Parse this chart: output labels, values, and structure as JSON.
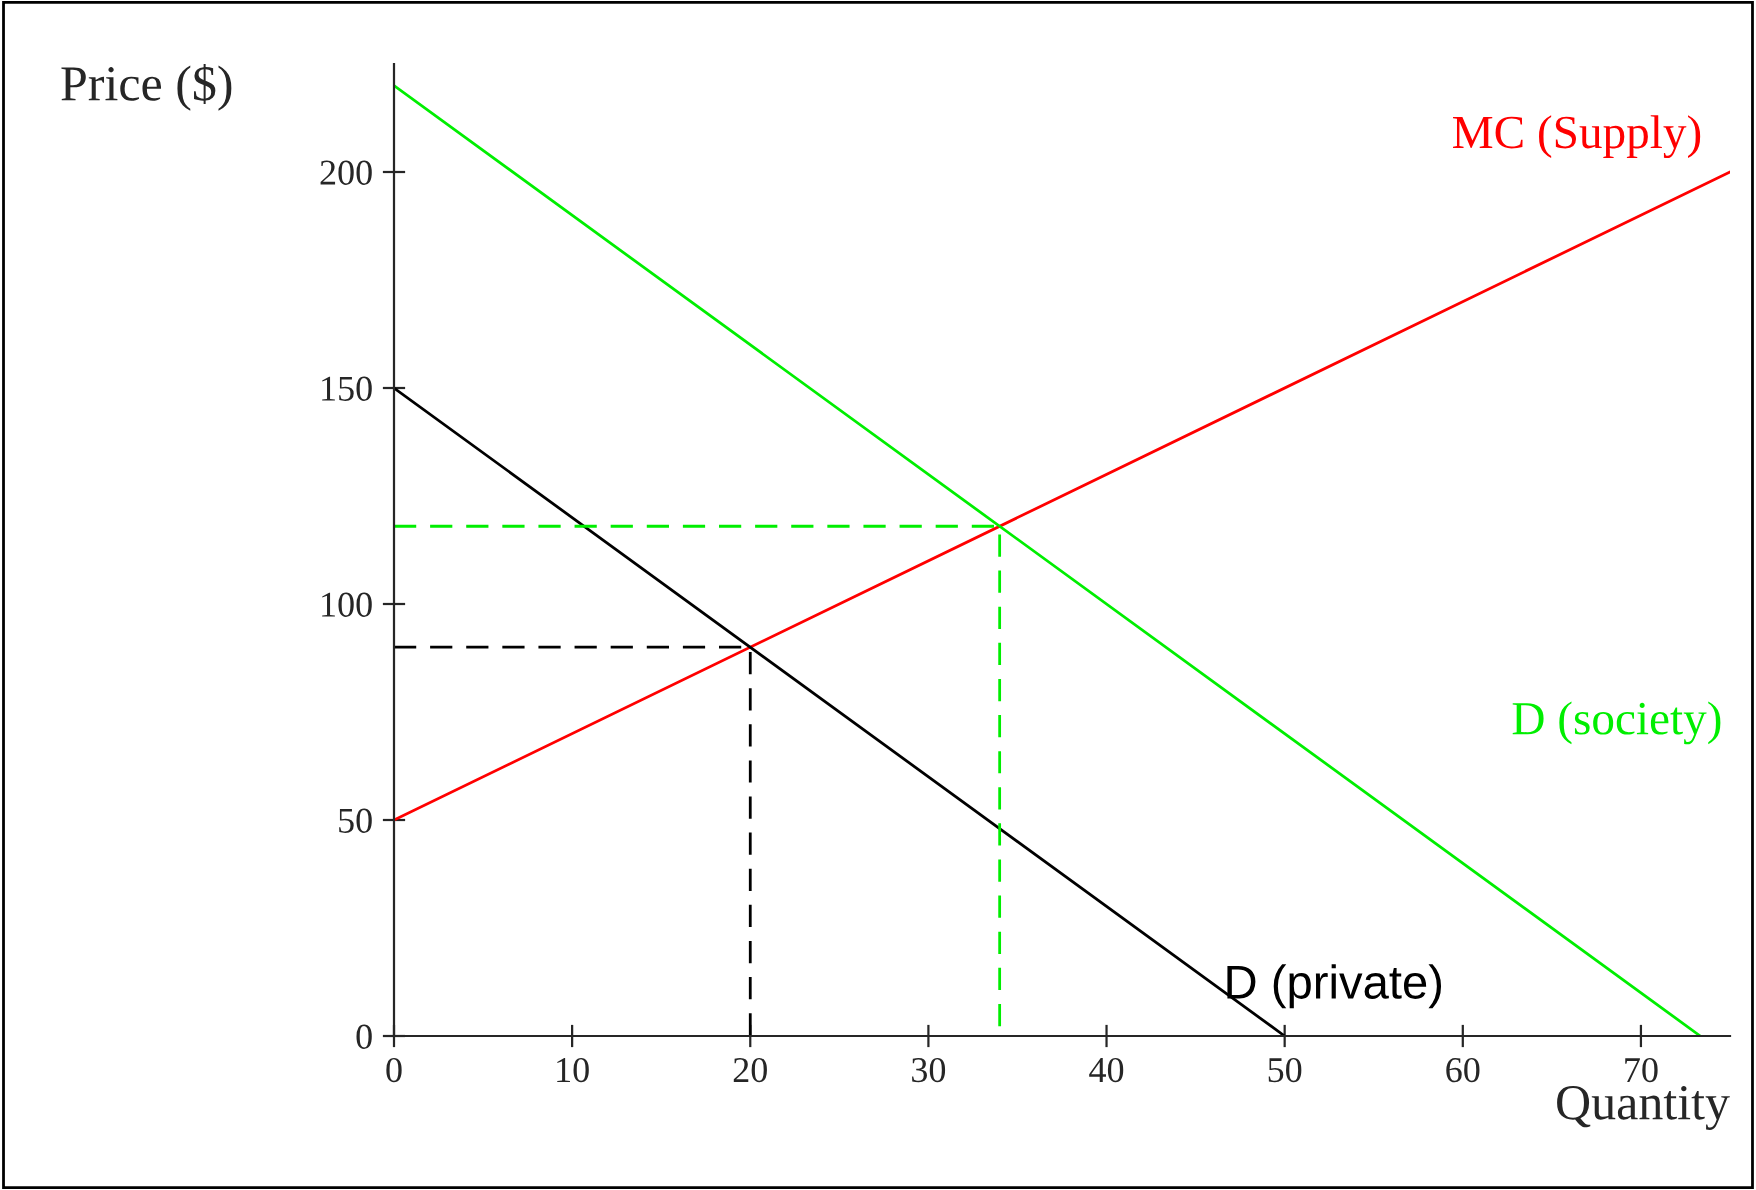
{
  "chart_data": {
    "type": "line",
    "xlabel": "Quantity",
    "ylabel": "Price ($)",
    "xlim": [
      0,
      75
    ],
    "ylim": [
      0,
      225
    ],
    "xticks": [
      0,
      10,
      20,
      30,
      40,
      50,
      60,
      70
    ],
    "yticks": [
      0,
      50,
      100,
      150,
      200
    ],
    "grid": false,
    "legend": false,
    "marker": "none",
    "series": [
      {
        "name": "MC (Supply)",
        "color": "#ff0000",
        "x": [
          0,
          75
        ],
        "values": [
          50,
          200
        ]
      },
      {
        "name": "D (society)",
        "color": "#00ee00",
        "x": [
          0,
          73.33
        ],
        "values": [
          220,
          0
        ]
      },
      {
        "name": "D (private)",
        "color": "#000000",
        "x": [
          0,
          50
        ],
        "values": [
          150,
          0
        ]
      },
      {
        "color": "#000000",
        "line_style": "dashed",
        "x": [
          0,
          20,
          20
        ],
        "values": [
          90,
          90,
          0
        ]
      },
      {
        "color": "#00ee00",
        "line_style": "dashed",
        "x": [
          0,
          34,
          34
        ],
        "values": [
          118,
          118,
          0
        ]
      }
    ]
  }
}
